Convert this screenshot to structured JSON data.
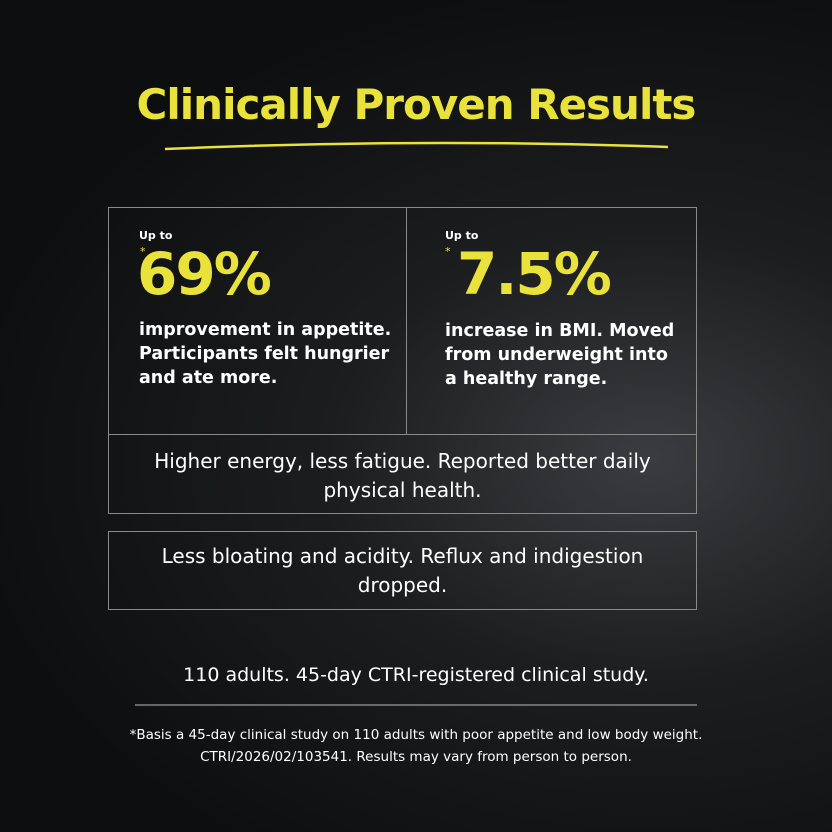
{
  "title": "Clinically Proven Results",
  "stats": [
    {
      "prefix": "Up to",
      "asterisk": "*",
      "value": "69%",
      "lines": [
        "improvement in appetite.",
        "Participants felt hungrier",
        "and ate more."
      ]
    },
    {
      "prefix": "Up to",
      "asterisk": "*",
      "value": "7.5%",
      "lines": [
        "increase in BMI. Moved",
        "from underweight into",
        "a healthy range."
      ]
    }
  ],
  "benefits": [
    {
      "lines": [
        "Higher energy, less fatigue. Reported better daily",
        "physical health."
      ]
    },
    {
      "lines": [
        "Less bloating and acidity. Reflux and indigestion",
        "dropped."
      ]
    }
  ],
  "summary": "110 adults. 45-day CTRI-registered clinical study.",
  "footnote": [
    "*Basis a 45-day clinical study on 110 adults with poor appetite and low body weight.",
    "CTRI/2026/02/103541. Results may vary from person to person."
  ]
}
